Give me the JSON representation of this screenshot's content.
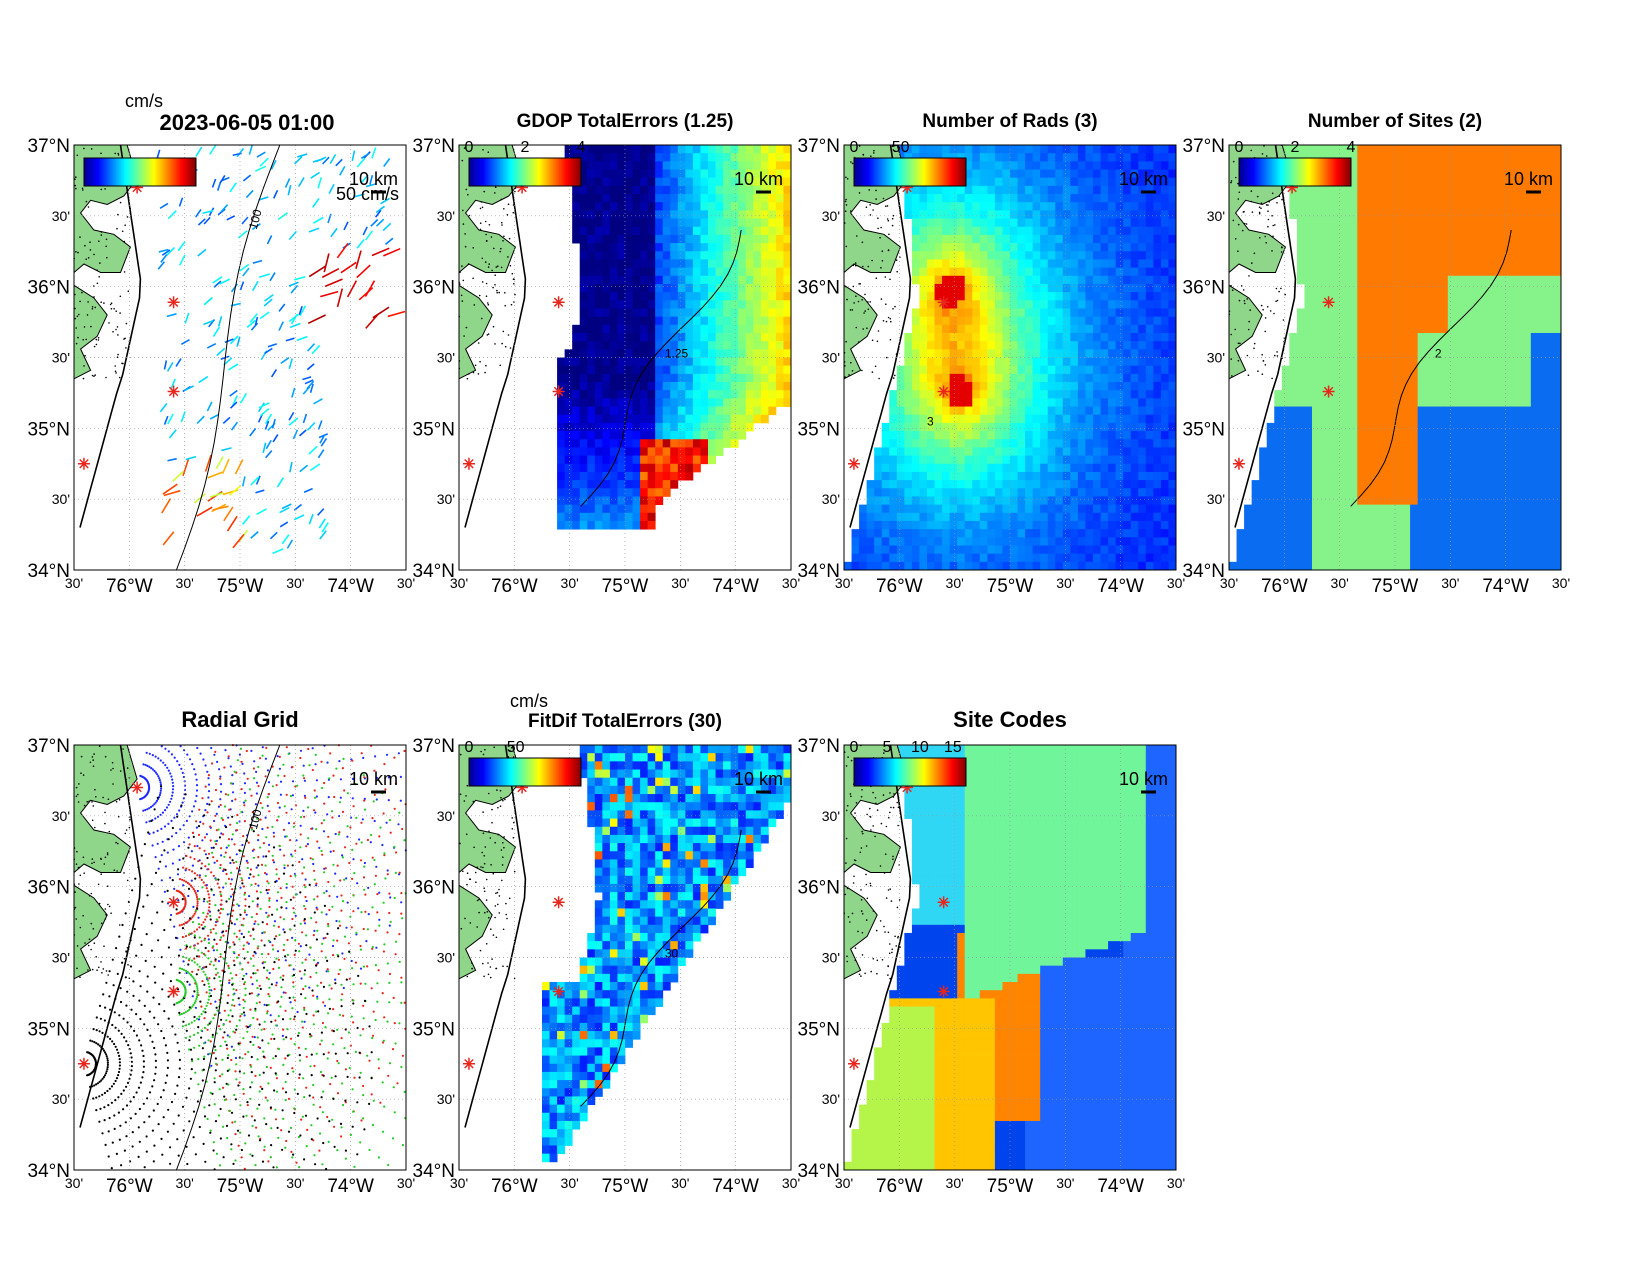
{
  "figure_title": "2023-06-05 01:00",
  "axis": {
    "lat_labels": [
      "37°N",
      "30'",
      "36°N",
      "30'",
      "35°N",
      "30'",
      "34°N"
    ],
    "lon_labels": [
      "30'",
      "76°W",
      "30'",
      "75°W",
      "30'",
      "74°W",
      "30'"
    ]
  },
  "panels": [
    {
      "id": "currents",
      "title": "",
      "colorbar_unit": "cm/s",
      "colorbar_ticks": [],
      "scale_label": "10 km",
      "extra_label": "50 cm/s",
      "contour_label": "100"
    },
    {
      "id": "gdop",
      "title": "GDOP TotalErrors (1.25)",
      "colorbar_unit": "",
      "colorbar_ticks": [
        "0",
        "2",
        "4"
      ],
      "scale_label": "10 km",
      "contour_label": "1.25"
    },
    {
      "id": "nrads",
      "title": "Number of Rads (3)",
      "colorbar_unit": "",
      "colorbar_ticks": [
        "0",
        "50"
      ],
      "scale_label": "10 km",
      "contour_label": "3"
    },
    {
      "id": "nsites",
      "title": "Number of Sites (2)",
      "colorbar_unit": "",
      "colorbar_ticks": [
        "0",
        "2",
        "4"
      ],
      "scale_label": "10 km",
      "contour_label": "2"
    },
    {
      "id": "radial",
      "title": "Radial Grid",
      "colorbar_unit": "",
      "colorbar_ticks": [],
      "scale_label": "10 km",
      "contour_label": "100"
    },
    {
      "id": "fitdif",
      "title": "FitDif TotalErrors (30)",
      "colorbar_unit": "cm/s",
      "colorbar_ticks": [
        "0",
        "50"
      ],
      "scale_label": "10 km",
      "contour_label": "30"
    },
    {
      "id": "sitecodes",
      "title": "Site Codes",
      "colorbar_unit": "",
      "colorbar_ticks": [
        "0",
        "5",
        "10",
        "15"
      ],
      "scale_label": "10 km",
      "contour_label": ""
    }
  ],
  "colors": {
    "land": "#8fd68a",
    "site_marker": "#e8261c",
    "jet": [
      "#00008f",
      "#0000ff",
      "#007fff",
      "#00ffff",
      "#7fff7f",
      "#ffff00",
      "#ff7f00",
      "#ff0000",
      "#7f0000"
    ],
    "nsites_palette": [
      "#0a6cf0",
      "#86f28a",
      "#ff7a00",
      "#8b0000"
    ],
    "site_code_palette": [
      "#1e64ff",
      "#0044ee",
      "#70f59a",
      "#2fd7f5",
      "#b5f54a",
      "#ffc500",
      "#ff8500",
      "#8b0000"
    ]
  },
  "map_extent": {
    "lon_min": -76.5,
    "lon_max": -73.5,
    "lat_min": 34.0,
    "lat_max": 37.0
  }
}
